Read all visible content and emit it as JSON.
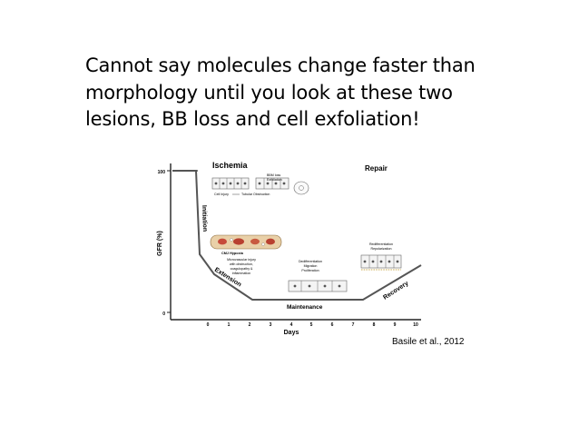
{
  "slide": {
    "title_lines": [
      "Cannot say molecules change faster than",
      "morphology until you look at these two",
      "lesions, BB loss and cell exfoliation!"
    ],
    "citation": "Basile et al., 2012"
  },
  "figure": {
    "ylabel": "GFR (%)",
    "xlabel": "Days",
    "y_ticks": [
      "100",
      "0"
    ],
    "x_ticks": [
      "0",
      "1",
      "2",
      "3",
      "4",
      "5",
      "6",
      "7",
      "8",
      "9",
      "10"
    ],
    "phases": {
      "ischemia": "Ischemia",
      "initiation": "Initiation",
      "extension": "Extension",
      "maintenance": "Maintenance",
      "recovery": "Recovery",
      "repair": "Repair"
    },
    "annotations": {
      "bbm_loss": "BBM loss",
      "exfoliation": "Exfoliation",
      "tubular_obstruction": "Tubular Obstruction",
      "cell_injury": "Cell Injury",
      "cmj_hypoxia": "CMJ Hypoxia",
      "microvascular_1": "Microvascular injury",
      "microvascular_2": "with obstruction,",
      "microvascular_3": "coagulopathy &",
      "microvascular_4": "inflammation",
      "dediff_1": "Dedifferentiation",
      "dediff_2": "Migration",
      "dediff_3": "Proliferation",
      "rediff_1": "Redifferentiation",
      "rediff_2": "Repolarization"
    }
  }
}
